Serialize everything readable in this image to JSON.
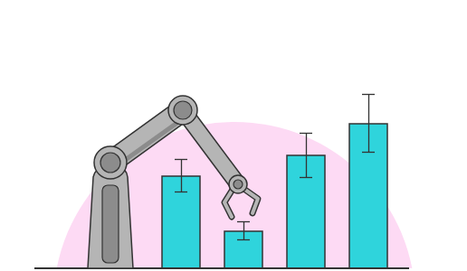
{
  "chart_data": {
    "type": "bar",
    "categories": [
      null,
      null,
      null,
      null
    ],
    "values": [
      102,
      41,
      125,
      160
    ],
    "error_low": [
      85,
      32,
      101,
      129
    ],
    "error_high": [
      121,
      52,
      150,
      193
    ],
    "color": "#2fd4dc",
    "ylim": [
      0,
      200
    ],
    "tick_labels": false,
    "grid": false
  }
}
